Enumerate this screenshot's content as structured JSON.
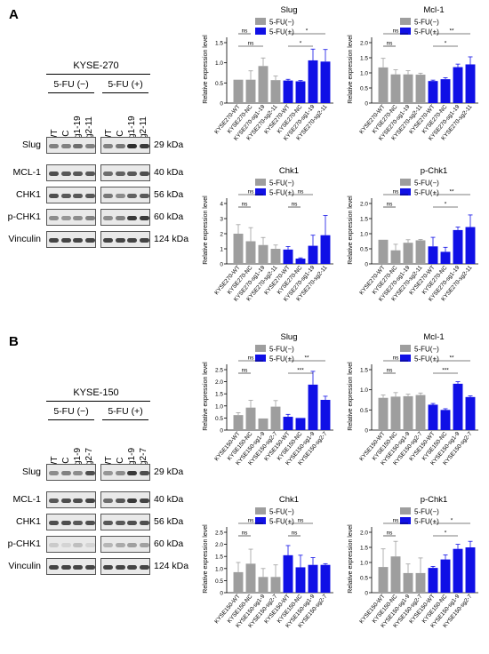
{
  "panels": [
    {
      "letter": "A",
      "cell_line": "KYSE-270",
      "conditions": [
        "5-FU (−)",
        "5-FU (+)"
      ],
      "lanes": [
        "WT",
        "NC",
        "sg1-19",
        "sg2-11",
        "WT",
        "NC",
        "sg1-19",
        "sg2-11"
      ],
      "blots": [
        {
          "label": "Slug",
          "kda": "29 kDa",
          "intensity": [
            0.5,
            0.5,
            0.6,
            0.5,
            0.5,
            0.55,
            0.9,
            0.85
          ]
        },
        {
          "label": "MCL-1",
          "kda": "40 kDa",
          "intensity": [
            0.75,
            0.7,
            0.7,
            0.7,
            0.6,
            0.65,
            0.7,
            0.75
          ]
        },
        {
          "label": "CHK1",
          "kda": "56 kDa",
          "intensity": [
            0.75,
            0.7,
            0.7,
            0.7,
            0.55,
            0.45,
            0.65,
            0.7
          ]
        },
        {
          "label": "p-CHK1",
          "kda": "60 kDa",
          "intensity": [
            0.45,
            0.4,
            0.45,
            0.5,
            0.45,
            0.5,
            0.85,
            0.85
          ]
        },
        {
          "label": "Vinculin",
          "kda": "124 kDa",
          "intensity": [
            0.8,
            0.8,
            0.8,
            0.8,
            0.8,
            0.8,
            0.8,
            0.8
          ]
        }
      ]
    },
    {
      "letter": "B",
      "cell_line": "KYSE-150",
      "conditions": [
        "5-FU (−)",
        "5-FU (+)"
      ],
      "lanes": [
        "WT",
        "NC",
        "sg1-9",
        "sg2-7",
        "WT",
        "NC",
        "sg1-9",
        "sg2-7"
      ],
      "blots": [
        {
          "label": "Slug",
          "kda": "29 kDa",
          "intensity": [
            0.45,
            0.5,
            0.45,
            0.75,
            0.4,
            0.45,
            0.85,
            0.75
          ]
        },
        {
          "label": "MCL-1",
          "kda": "40 kDa",
          "intensity": [
            0.7,
            0.75,
            0.75,
            0.8,
            0.6,
            0.7,
            0.85,
            0.8
          ]
        },
        {
          "label": "CHK1",
          "kda": "56 kDa",
          "intensity": [
            0.75,
            0.75,
            0.7,
            0.75,
            0.7,
            0.7,
            0.75,
            0.75
          ]
        },
        {
          "label": "p-CHK1",
          "kda": "60 kDa",
          "intensity": [
            0.15,
            0.1,
            0.2,
            0.1,
            0.25,
            0.3,
            0.35,
            0.35
          ]
        },
        {
          "label": "Vinculin",
          "kda": "124 kDa",
          "intensity": [
            0.8,
            0.8,
            0.8,
            0.8,
            0.8,
            0.8,
            0.8,
            0.8
          ]
        }
      ]
    }
  ],
  "colors": {
    "minus": "#9e9e9e",
    "plus": "#1010e6",
    "band": "#1a1a1a"
  },
  "chart_data": [
    {
      "type": "bar",
      "title": "Slug",
      "ylabel": "Relative expression level",
      "ylim": [
        0,
        1.5
      ],
      "yticks": [
        "0",
        "0.5",
        "1.0",
        "1.5"
      ],
      "categories": [
        "KYSE270-WT",
        "KYSE270-NC",
        "KYSE270-sg1-19",
        "KYSE270-sg2-11",
        "KYSE270-WT",
        "KYSE270-NC",
        "KYSE270-sg1-19",
        "KYSE270-sg2-11"
      ],
      "values": [
        0.58,
        0.58,
        0.92,
        0.57,
        0.56,
        0.54,
        1.06,
        1.03
      ],
      "errors": [
        0.0,
        0.22,
        0.2,
        0.1,
        0.03,
        0.02,
        0.28,
        0.3
      ],
      "groups": [
        "minus",
        "minus",
        "minus",
        "minus",
        "plus",
        "plus",
        "plus",
        "plus"
      ],
      "legend": [
        "5-FU(−)",
        "5-FU(+)"
      ],
      "sig": [
        {
          "from": 0,
          "to": 1,
          "label": "ns",
          "level": 2
        },
        {
          "from": 0,
          "to": 2,
          "label": "ns",
          "level": 1
        },
        {
          "from": 4,
          "to": 6,
          "label": "*",
          "level": 1
        },
        {
          "from": 4,
          "to": 7,
          "label": "*",
          "level": 2
        }
      ]
    },
    {
      "type": "bar",
      "title": "Mcl-1",
      "ylabel": "Relative expression level",
      "ylim": [
        0,
        2.0
      ],
      "yticks": [
        "0",
        "0.5",
        "1.0",
        "1.5",
        "2.0"
      ],
      "categories": [
        "KYSE270-WT",
        "KYSE270-NC",
        "KYSE270-sg1-19",
        "KYSE270-sg2-11",
        "KYSE270-WT",
        "KYSE270-NC",
        "KYSE270-sg1-19",
        "KYSE270-sg2-11"
      ],
      "values": [
        1.18,
        0.95,
        0.95,
        0.94,
        0.73,
        0.79,
        1.19,
        1.28
      ],
      "errors": [
        0.3,
        0.15,
        0.12,
        0.05,
        0.03,
        0.05,
        0.1,
        0.25
      ],
      "groups": [
        "minus",
        "minus",
        "minus",
        "minus",
        "plus",
        "plus",
        "plus",
        "plus"
      ],
      "legend": [
        "5-FU(−)",
        "5-FU(+)"
      ],
      "sig": [
        {
          "from": 0,
          "to": 1,
          "label": "ns",
          "level": 1
        },
        {
          "from": 0,
          "to": 2,
          "label": "ns",
          "level": 2
        },
        {
          "from": 4,
          "to": 6,
          "label": "*",
          "level": 1
        },
        {
          "from": 4,
          "to": 7,
          "label": "**",
          "level": 2
        }
      ]
    },
    {
      "type": "bar",
      "title": "Chk1",
      "ylabel": "Relative expression level",
      "ylim": [
        0,
        4
      ],
      "yticks": [
        "0",
        "1",
        "2",
        "3",
        "4"
      ],
      "categories": [
        "KYSE270-WT",
        "KYSE270-NC",
        "KYSE270-sg1-19",
        "KYSE270-sg2-11",
        "KYSE270-WT",
        "KYSE270-NC",
        "KYSE270-sg1-19",
        "KYSE270-sg2-11"
      ],
      "values": [
        2.0,
        1.5,
        1.25,
        1.0,
        0.95,
        0.35,
        1.2,
        1.9
      ],
      "errors": [
        0.6,
        0.9,
        0.5,
        0.25,
        0.2,
        0.05,
        0.7,
        1.3
      ],
      "groups": [
        "minus",
        "minus",
        "minus",
        "minus",
        "plus",
        "plus",
        "plus",
        "plus"
      ],
      "legend": [
        "5-FU(−)",
        "5-FU(+)"
      ],
      "sig": [
        {
          "from": 0,
          "to": 1,
          "label": "ns",
          "level": 1
        },
        {
          "from": 0,
          "to": 2,
          "label": "ns",
          "level": 2
        },
        {
          "from": 4,
          "to": 5,
          "label": "ns",
          "level": 1
        },
        {
          "from": 4,
          "to": 6,
          "label": "ns",
          "level": 2
        }
      ]
    },
    {
      "type": "bar",
      "title": "p-Chk1",
      "ylabel": "Relative expression level",
      "ylim": [
        0,
        2.0
      ],
      "yticks": [
        "0",
        "0.5",
        "1.0",
        "1.5",
        "2.0"
      ],
      "categories": [
        "KYSE270-WT",
        "KYSE270-NC",
        "KYSE270-sg1-19",
        "KYSE270-sg2-11",
        "KYSE270-WT",
        "KYSE270-NC",
        "KYSE270-sg1-19",
        "KYSE270-sg2-11"
      ],
      "values": [
        0.8,
        0.45,
        0.7,
        0.78,
        0.58,
        0.4,
        1.12,
        1.22
      ],
      "errors": [
        0.0,
        0.2,
        0.1,
        0.03,
        0.3,
        0.15,
        0.1,
        0.4
      ],
      "groups": [
        "minus",
        "minus",
        "minus",
        "minus",
        "plus",
        "plus",
        "plus",
        "plus"
      ],
      "legend": [
        "5-FU(−)",
        "5-FU(+)"
      ],
      "sig": [
        {
          "from": 0,
          "to": 1,
          "label": "ns",
          "level": 1
        },
        {
          "from": 0,
          "to": 2,
          "label": "ns",
          "level": 2
        },
        {
          "from": 4,
          "to": 6,
          "label": "*",
          "level": 1
        },
        {
          "from": 4,
          "to": 7,
          "label": "**",
          "level": 2
        }
      ]
    },
    {
      "type": "bar",
      "title": "Slug",
      "ylabel": "Relative expression level",
      "ylim": [
        0,
        2.5
      ],
      "yticks": [
        "0",
        "0.5",
        "1.0",
        "1.5",
        "2.0",
        "2.5"
      ],
      "categories": [
        "KYSE150-WT",
        "KYSE150-NC",
        "KYSE150-sg1-9",
        "KYSE150-sg2-7",
        "KYSE150-WT",
        "KYSE150-NC",
        "KYSE150-sg1-9",
        "KYSE150-sg2-7"
      ],
      "values": [
        0.62,
        0.93,
        0.48,
        0.97,
        0.55,
        0.5,
        1.88,
        1.25
      ],
      "errors": [
        0.1,
        0.3,
        0.0,
        0.25,
        0.1,
        0.0,
        0.55,
        0.15
      ],
      "groups": [
        "minus",
        "minus",
        "minus",
        "minus",
        "plus",
        "plus",
        "plus",
        "plus"
      ],
      "legend": [
        "5-FU(−)",
        "5-FU(+)"
      ],
      "sig": [
        {
          "from": 0,
          "to": 1,
          "label": "ns",
          "level": 1
        },
        {
          "from": 0,
          "to": 2,
          "label": "ns",
          "level": 2
        },
        {
          "from": 4,
          "to": 6,
          "label": "***",
          "level": 1
        },
        {
          "from": 4,
          "to": 7,
          "label": "**",
          "level": 2
        }
      ]
    },
    {
      "type": "bar",
      "title": "Mcl-1",
      "ylabel": "Relative expression level",
      "ylim": [
        0,
        1.5
      ],
      "yticks": [
        "0",
        "0.5",
        "1.0",
        "1.5"
      ],
      "categories": [
        "KYSE150-WT",
        "KYSE150-NC",
        "KYSE150-sg1-9",
        "KYSE150-sg2-7",
        "KYSE150-WT",
        "KYSE150-NC",
        "KYSE150-sg1-9",
        "KYSE150-sg2-7"
      ],
      "values": [
        0.8,
        0.83,
        0.84,
        0.87,
        0.63,
        0.5,
        1.15,
        0.82
      ],
      "errors": [
        0.07,
        0.1,
        0.05,
        0.05,
        0.03,
        0.03,
        0.05,
        0.03
      ],
      "groups": [
        "minus",
        "minus",
        "minus",
        "minus",
        "plus",
        "plus",
        "plus",
        "plus"
      ],
      "legend": [
        "5-FU(−)",
        "5-FU(+)"
      ],
      "sig": [
        {
          "from": 0,
          "to": 1,
          "label": "ns",
          "level": 1
        },
        {
          "from": 0,
          "to": 2,
          "label": "ns",
          "level": 2
        },
        {
          "from": 4,
          "to": 6,
          "label": "***",
          "level": 1
        },
        {
          "from": 4,
          "to": 7,
          "label": "**",
          "level": 2
        }
      ]
    },
    {
      "type": "bar",
      "title": "Chk1",
      "ylabel": "Relative expression level",
      "ylim": [
        0,
        2.5
      ],
      "yticks": [
        "0",
        "0.5",
        "1.0",
        "1.5",
        "2.0",
        "2.5"
      ],
      "categories": [
        "KYSE150-WT",
        "KYSE150-NC",
        "KYSE150-sg1-9",
        "KYSE150-sg2-7",
        "KYSE150-WT",
        "KYSE150-NC",
        "KYSE150-sg1-9",
        "KYSE150-sg2-7"
      ],
      "values": [
        0.85,
        1.2,
        0.65,
        0.65,
        1.55,
        1.05,
        1.15,
        1.15
      ],
      "errors": [
        0.4,
        0.6,
        0.35,
        0.5,
        0.4,
        0.5,
        0.3,
        0.05
      ],
      "groups": [
        "minus",
        "minus",
        "minus",
        "minus",
        "plus",
        "plus",
        "plus",
        "plus"
      ],
      "legend": [
        "5-FU(−)",
        "5-FU(+)"
      ],
      "sig": [
        {
          "from": 0,
          "to": 1,
          "label": "ns",
          "level": 1
        },
        {
          "from": 0,
          "to": 2,
          "label": "ns",
          "level": 2
        },
        {
          "from": 4,
          "to": 5,
          "label": "ns",
          "level": 1
        },
        {
          "from": 4,
          "to": 6,
          "label": "ns",
          "level": 2
        }
      ]
    },
    {
      "type": "bar",
      "title": "p-Chk1",
      "ylabel": "Relative expression level",
      "ylim": [
        0,
        2.0
      ],
      "yticks": [
        "0",
        "0.5",
        "1.0",
        "1.5",
        "2.0"
      ],
      "categories": [
        "KYSE150-WT",
        "KYSE150-NC",
        "KYSE150-sg1-9",
        "KYSE150-sg2-7",
        "KYSE150-WT",
        "KYSE150-NC",
        "KYSE150-sg1-9",
        "KYSE150-sg2-7"
      ],
      "values": [
        0.85,
        1.2,
        0.65,
        0.65,
        0.82,
        1.1,
        1.45,
        1.5
      ],
      "errors": [
        0.6,
        0.5,
        0.3,
        0.5,
        0.05,
        0.15,
        0.15,
        0.2
      ],
      "groups": [
        "minus",
        "minus",
        "minus",
        "minus",
        "plus",
        "plus",
        "plus",
        "plus"
      ],
      "legend": [
        "5-FU(−)",
        "5-FU(+)"
      ],
      "sig": [
        {
          "from": 0,
          "to": 1,
          "label": "ns",
          "level": 1
        },
        {
          "from": 0,
          "to": 2,
          "label": "ns",
          "level": 2
        },
        {
          "from": 4,
          "to": 6,
          "label": "*",
          "level": 1
        },
        {
          "from": 4,
          "to": 7,
          "label": "*",
          "level": 2
        }
      ]
    }
  ]
}
